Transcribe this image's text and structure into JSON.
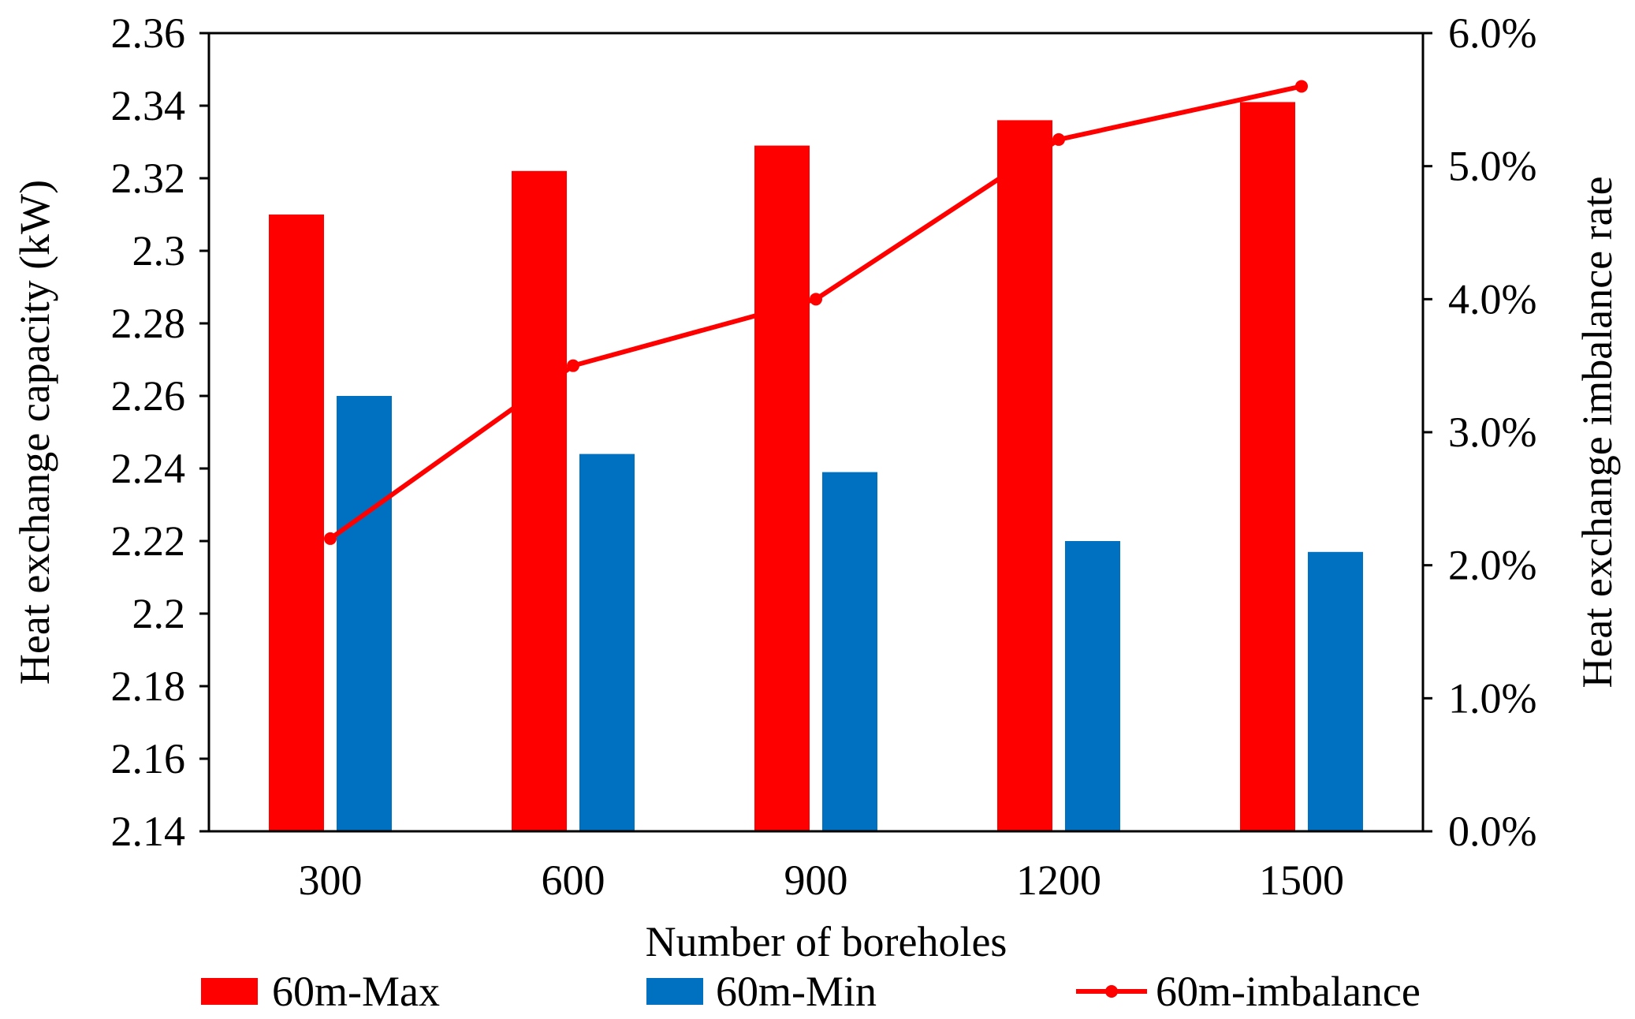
{
  "chart_data": {
    "type": "bar",
    "categories": [
      "300",
      "600",
      "900",
      "1200",
      "1500"
    ],
    "xlabel": "Number of boreholes",
    "ylabel": "Heat exchange capacity (kW)",
    "y2label": "Heat exchange imbalance rate",
    "ylim": [
      2.14,
      2.36
    ],
    "y_ticks": [
      "2.14",
      "2.16",
      "2.18",
      "2.2",
      "2.22",
      "2.24",
      "2.26",
      "2.28",
      "2.3",
      "2.32",
      "2.34",
      "2.36"
    ],
    "y2lim": [
      0.0,
      6.0
    ],
    "y2_ticks": [
      "0.0%",
      "1.0%",
      "2.0%",
      "3.0%",
      "4.0%",
      "5.0%",
      "6.0%"
    ],
    "grid": false,
    "legend_position": "bottom",
    "series": [
      {
        "name": "60m-Max",
        "kind": "bar",
        "axis": "left",
        "color": "#ff0000",
        "values": [
          2.31,
          2.322,
          2.329,
          2.336,
          2.341
        ]
      },
      {
        "name": "60m-Min",
        "kind": "bar",
        "axis": "left",
        "color": "#0070c0",
        "values": [
          2.26,
          2.244,
          2.239,
          2.22,
          2.217
        ]
      },
      {
        "name": "60m-imbalance",
        "kind": "line",
        "axis": "right",
        "color": "#ff0000",
        "values": [
          2.2,
          3.5,
          4.0,
          5.2,
          5.6
        ]
      }
    ]
  }
}
